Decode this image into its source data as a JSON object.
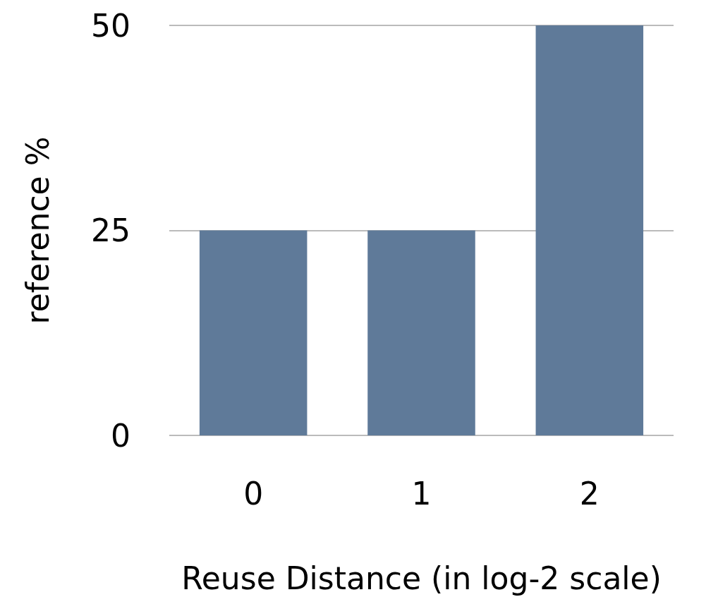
{
  "chart_data": {
    "type": "bar",
    "xlabel": "Reuse Distance (in log-2 scale)",
    "ylabel": "reference %",
    "categories": [
      "0",
      "1",
      "2"
    ],
    "values": [
      25,
      25,
      50
    ],
    "color": "#5f7a99",
    "ylim": [
      0,
      50
    ],
    "yticks": [
      0,
      25,
      50
    ],
    "grid": "y"
  }
}
